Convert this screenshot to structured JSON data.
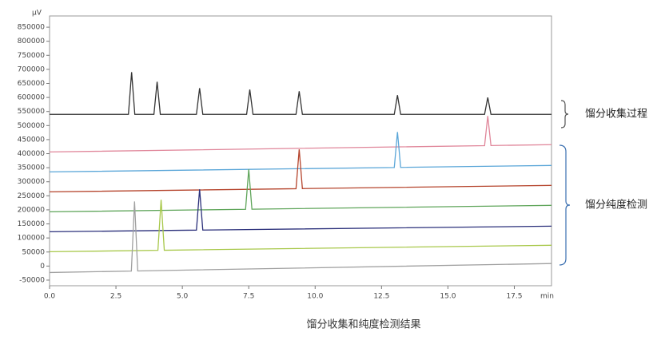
{
  "chart_data": {
    "type": "line",
    "y_label": "μV",
    "x_label": "min",
    "xlim": [
      0,
      18.9
    ],
    "ylim": [
      -70000,
      890000
    ],
    "xticks": [
      {
        "value": 0,
        "label": "0.0"
      },
      {
        "value": 2.5,
        "label": "2.5"
      },
      {
        "value": 5,
        "label": "5.0"
      },
      {
        "value": 7.5,
        "label": "7.5"
      },
      {
        "value": 10,
        "label": "10.0"
      },
      {
        "value": 12.5,
        "label": "12.5"
      },
      {
        "value": 15,
        "label": "15.0"
      },
      {
        "value": 17.5,
        "label": "17.5"
      }
    ],
    "yticks": [
      -50000,
      0,
      50000,
      100000,
      150000,
      200000,
      250000,
      300000,
      350000,
      400000,
      450000,
      500000,
      550000,
      600000,
      650000,
      700000,
      750000,
      800000,
      850000
    ],
    "annotations": [
      "馏分收集过程",
      "馏分纯度检测"
    ],
    "caption": "馏分收集和纯度检测结果",
    "series": [
      {
        "color": "#333333",
        "x": [
          0,
          2.97,
          3.09,
          3.21,
          3.93,
          4.05,
          4.17,
          5.53,
          5.65,
          5.77,
          7.42,
          7.54,
          7.66,
          9.28,
          9.4,
          9.52,
          12.98,
          13.1,
          13.22,
          16.38,
          16.5,
          16.62,
          18.9
        ],
        "values": [
          540000,
          540000,
          690000,
          540000,
          540000,
          656000,
          540000,
          540000,
          633000,
          540000,
          540000,
          628000,
          540000,
          540000,
          622000,
          540000,
          540000,
          608000,
          540000,
          540000,
          600000,
          540000,
          540000
        ]
      },
      {
        "color": "#e0869a",
        "x": [
          0,
          16.38,
          16.5,
          16.62,
          18.9
        ],
        "values": [
          406000,
          428500,
          534000,
          428900,
          432000
        ]
      },
      {
        "color": "#5aa6d8",
        "x": [
          0,
          12.98,
          13.1,
          13.22,
          18.9
        ],
        "values": [
          335000,
          350800,
          477000,
          351100,
          358000
        ]
      },
      {
        "color": "#b5442c",
        "x": [
          0,
          9.28,
          9.4,
          9.52,
          18.9
        ],
        "values": [
          264000,
          275300,
          415000,
          275600,
          287000
        ]
      },
      {
        "color": "#5fa55a",
        "x": [
          0,
          7.38,
          7.5,
          7.62,
          18.9
        ],
        "values": [
          193000,
          202000,
          344000,
          202300,
          216000
        ]
      },
      {
        "color": "#2a2f7a",
        "x": [
          0,
          5.53,
          5.65,
          5.77,
          18.9
        ],
        "values": [
          122000,
          127900,
          273000,
          128100,
          142000
        ]
      },
      {
        "color": "#a8c84a",
        "x": [
          0,
          4.08,
          4.2,
          4.32,
          18.9
        ],
        "values": [
          51000,
          56000,
          236000,
          56300,
          74000
        ]
      },
      {
        "color": "#a0a0a0",
        "x": [
          0,
          3.08,
          3.2,
          3.32,
          18.9
        ],
        "values": [
          -23000,
          -17800,
          230000,
          -17400,
          9000
        ]
      }
    ]
  }
}
